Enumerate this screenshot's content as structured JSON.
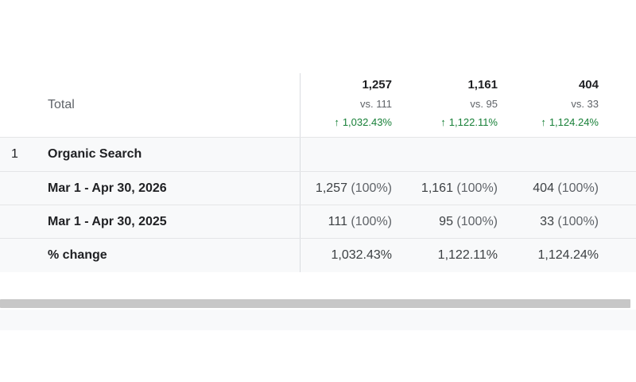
{
  "totals": {
    "label": "Total",
    "metrics": [
      {
        "value": "1,257",
        "vs": "vs. 111",
        "change": "1,032.43%"
      },
      {
        "value": "1,161",
        "vs": "vs. 95",
        "change": "1,122.11%"
      },
      {
        "value": "404",
        "vs": "vs. 33",
        "change": "1,124.24%"
      }
    ],
    "change_icon": "arrow-up-icon",
    "change_color": "#188038",
    "change_arrow": "↑"
  },
  "rows": [
    {
      "index": "1",
      "label": "Organic Search",
      "metrics": []
    },
    {
      "label": "Mar 1 - Apr 30, 2026",
      "metrics": [
        {
          "value": "1,257",
          "pct": "(100%)"
        },
        {
          "value": "1,161",
          "pct": "(100%)"
        },
        {
          "value": "404",
          "pct": "(100%)"
        }
      ]
    },
    {
      "label": "Mar 1 - Apr 30, 2025",
      "metrics": [
        {
          "value": "111",
          "pct": "(100%)"
        },
        {
          "value": "95",
          "pct": "(100%)"
        },
        {
          "value": "33",
          "pct": "(100%)"
        }
      ]
    },
    {
      "label": "% change",
      "metrics": [
        {
          "value": "1,032.43%"
        },
        {
          "value": "1,122.11%"
        },
        {
          "value": "1,124.24%"
        }
      ]
    }
  ]
}
